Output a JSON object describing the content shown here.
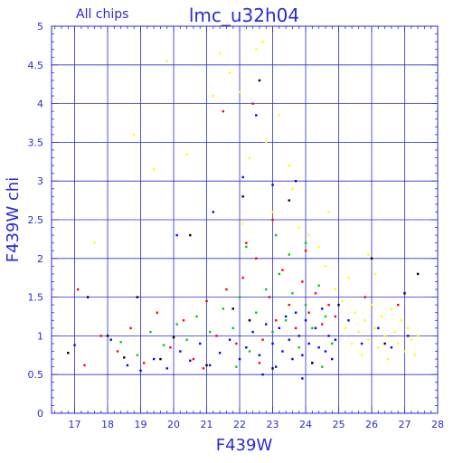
{
  "chart_data": {
    "type": "scatter",
    "title": "lmc_u32h04",
    "subtitle": "All chips",
    "xlabel": "F439W",
    "ylabel": "F439W  chi",
    "xlim": [
      16.3,
      28
    ],
    "ylim": [
      0,
      5
    ],
    "x_ticks": [
      "17",
      "18",
      "19",
      "20",
      "21",
      "22",
      "23",
      "24",
      "25",
      "26",
      "27",
      "28"
    ],
    "y_ticks": [
      "0",
      "0.5",
      "1",
      "1.5",
      "2",
      "2.5",
      "3",
      "3.5",
      "4",
      "4.5",
      "5"
    ],
    "grid": true,
    "series": [
      {
        "color": "#0000ff",
        "points": [
          [
            17.0,
            0.88
          ],
          [
            18.1,
            0.95
          ],
          [
            18.6,
            0.62
          ],
          [
            19.0,
            0.55
          ],
          [
            19.4,
            0.7
          ],
          [
            19.8,
            0.58
          ],
          [
            20.2,
            0.8
          ],
          [
            20.5,
            0.68
          ],
          [
            20.8,
            0.9
          ],
          [
            21.1,
            0.62
          ],
          [
            21.4,
            0.78
          ],
          [
            21.7,
            0.95
          ],
          [
            22.0,
            0.7
          ],
          [
            22.2,
            0.85
          ],
          [
            22.4,
            1.05
          ],
          [
            22.6,
            0.75
          ],
          [
            22.8,
            1.15
          ],
          [
            23.0,
            0.9
          ],
          [
            23.1,
            0.6
          ],
          [
            23.2,
            1.1
          ],
          [
            23.3,
            0.8
          ],
          [
            23.4,
            1.25
          ],
          [
            23.5,
            0.95
          ],
          [
            23.6,
            0.7
          ],
          [
            23.7,
            1.3
          ],
          [
            23.8,
            1.0
          ],
          [
            23.9,
            0.75
          ],
          [
            24.0,
            1.2
          ],
          [
            24.1,
            0.9
          ],
          [
            24.2,
            0.65
          ],
          [
            24.3,
            1.1
          ],
          [
            24.4,
            0.85
          ],
          [
            24.5,
            1.35
          ],
          [
            24.6,
            0.8
          ],
          [
            24.7,
            1.0
          ],
          [
            24.8,
            0.7
          ],
          [
            24.9,
            0.95
          ],
          [
            25.3,
            1.2
          ],
          [
            25.7,
            0.9
          ],
          [
            26.2,
            1.1
          ],
          [
            26.6,
            0.85
          ],
          [
            27.1,
            1.0
          ],
          [
            20.1,
            2.3
          ],
          [
            21.2,
            2.6
          ],
          [
            22.1,
            3.05
          ],
          [
            23.0,
            2.95
          ],
          [
            23.7,
            3.0
          ],
          [
            22.5,
            3.85
          ],
          [
            22.7,
            0.5
          ],
          [
            23.9,
            0.45
          ]
        ]
      },
      {
        "color": "#ff0000",
        "points": [
          [
            17.1,
            1.6
          ],
          [
            17.3,
            0.62
          ],
          [
            17.8,
            1.0
          ],
          [
            18.3,
            0.8
          ],
          [
            18.7,
            1.1
          ],
          [
            19.1,
            0.65
          ],
          [
            19.5,
            1.3
          ],
          [
            19.9,
            0.85
          ],
          [
            20.3,
            1.2
          ],
          [
            20.6,
            0.7
          ],
          [
            21.0,
            1.45
          ],
          [
            21.3,
            1.0
          ],
          [
            21.6,
            1.6
          ],
          [
            21.9,
            0.9
          ],
          [
            22.1,
            1.75
          ],
          [
            22.3,
            1.2
          ],
          [
            22.5,
            2.0
          ],
          [
            22.7,
            0.95
          ],
          [
            22.9,
            1.5
          ],
          [
            23.1,
            1.2
          ],
          [
            23.3,
            1.85
          ],
          [
            23.5,
            1.4
          ],
          [
            23.7,
            1.1
          ],
          [
            23.9,
            1.7
          ],
          [
            24.1,
            1.3
          ],
          [
            24.3,
            1.55
          ],
          [
            24.5,
            1.15
          ],
          [
            24.7,
            1.4
          ],
          [
            24.9,
            1.25
          ],
          [
            25.8,
            1.5
          ],
          [
            26.8,
            1.4
          ],
          [
            21.5,
            3.9
          ],
          [
            22.4,
            4.0
          ],
          [
            22.2,
            2.2
          ],
          [
            23.0,
            2.5
          ],
          [
            24.0,
            2.1
          ],
          [
            22.6,
            0.65
          ],
          [
            20.9,
            0.58
          ]
        ]
      },
      {
        "color": "#00cc00",
        "points": [
          [
            18.4,
            0.92
          ],
          [
            18.9,
            0.75
          ],
          [
            19.3,
            1.05
          ],
          [
            19.7,
            0.88
          ],
          [
            20.1,
            1.15
          ],
          [
            20.4,
            0.95
          ],
          [
            20.7,
            1.25
          ],
          [
            21.1,
            1.05
          ],
          [
            21.5,
            1.35
          ],
          [
            21.8,
            1.1
          ],
          [
            22.0,
            1.5
          ],
          [
            22.3,
            0.8
          ],
          [
            22.5,
            1.3
          ],
          [
            22.8,
            1.6
          ],
          [
            23.0,
            1.05
          ],
          [
            23.2,
            1.8
          ],
          [
            23.4,
            1.2
          ],
          [
            23.6,
            1.55
          ],
          [
            23.8,
            0.85
          ],
          [
            24.0,
            1.4
          ],
          [
            24.2,
            1.1
          ],
          [
            24.4,
            1.65
          ],
          [
            24.6,
            1.25
          ],
          [
            24.8,
            0.9
          ],
          [
            22.2,
            2.15
          ],
          [
            23.1,
            2.3
          ],
          [
            24.0,
            2.2
          ],
          [
            23.5,
            2.05
          ],
          [
            21.9,
            0.6
          ],
          [
            24.5,
            0.6
          ]
        ]
      },
      {
        "color": "#ffff00",
        "points": [
          [
            17.6,
            2.2
          ],
          [
            18.8,
            3.6
          ],
          [
            19.4,
            3.15
          ],
          [
            19.8,
            4.55
          ],
          [
            20.4,
            3.35
          ],
          [
            21.2,
            4.1
          ],
          [
            21.4,
            4.65
          ],
          [
            21.7,
            4.4
          ],
          [
            22.0,
            4.15
          ],
          [
            22.1,
            2.45
          ],
          [
            22.3,
            3.3
          ],
          [
            22.5,
            4.7
          ],
          [
            22.7,
            4.8
          ],
          [
            22.8,
            3.5
          ],
          [
            23.0,
            2.6
          ],
          [
            23.2,
            3.85
          ],
          [
            23.5,
            3.2
          ],
          [
            23.8,
            2.4
          ],
          [
            24.1,
            2.3
          ],
          [
            24.4,
            2.15
          ],
          [
            24.6,
            1.9
          ],
          [
            24.9,
            1.6
          ],
          [
            25.1,
            1.45
          ],
          [
            25.2,
            1.1
          ],
          [
            25.4,
            0.9
          ],
          [
            25.5,
            1.3
          ],
          [
            25.6,
            1.05
          ],
          [
            25.7,
            0.75
          ],
          [
            25.8,
            1.2
          ],
          [
            25.9,
            0.95
          ],
          [
            26.0,
            1.4
          ],
          [
            26.1,
            1.1
          ],
          [
            26.2,
            0.85
          ],
          [
            26.3,
            1.25
          ],
          [
            26.4,
            1.0
          ],
          [
            26.5,
            0.7
          ],
          [
            26.6,
            1.35
          ],
          [
            26.7,
            1.05
          ],
          [
            26.8,
            0.9
          ],
          [
            26.9,
            1.2
          ],
          [
            27.0,
            0.8
          ],
          [
            27.1,
            1.1
          ],
          [
            27.2,
            0.95
          ],
          [
            27.3,
            0.75
          ],
          [
            27.4,
            1.0
          ],
          [
            25.3,
            1.75
          ],
          [
            26.1,
            1.8
          ],
          [
            25.9,
            2.05
          ],
          [
            24.7,
            2.6
          ],
          [
            23.6,
            2.9
          ]
        ]
      },
      {
        "color": "#000000",
        "points": [
          [
            16.8,
            0.78
          ],
          [
            17.4,
            1.5
          ],
          [
            18.0,
            1.0
          ],
          [
            18.5,
            0.72
          ],
          [
            18.9,
            1.5
          ],
          [
            19.6,
            0.7
          ],
          [
            20.0,
            0.98
          ],
          [
            20.5,
            2.3
          ],
          [
            21.0,
            0.62
          ],
          [
            21.8,
            1.35
          ],
          [
            22.1,
            2.8
          ],
          [
            22.3,
            1.2
          ],
          [
            22.6,
            4.3
          ],
          [
            23.0,
            0.58
          ],
          [
            23.5,
            2.75
          ],
          [
            24.2,
            0.65
          ],
          [
            25.0,
            1.4
          ],
          [
            26.0,
            2.0
          ],
          [
            26.4,
            0.9
          ],
          [
            27.0,
            1.55
          ],
          [
            27.4,
            1.8
          ]
        ]
      }
    ]
  }
}
